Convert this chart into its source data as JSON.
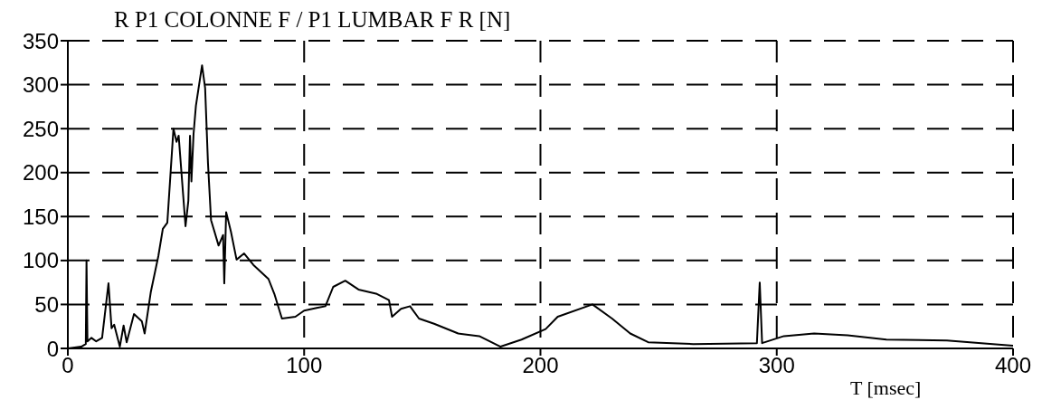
{
  "chart_data": {
    "type": "line",
    "title": "R P1 COLONNE F / P1 LUMBAR F R [N]",
    "xlabel": "T [msec]",
    "xlim": [
      0,
      400
    ],
    "xticks": [
      0,
      100,
      200,
      300,
      400
    ],
    "ylim": [
      0,
      350
    ],
    "yticks": [
      0,
      50,
      100,
      150,
      200,
      250,
      300,
      350
    ],
    "grid": true,
    "marker": "none",
    "line_style": "solid",
    "series": [
      {
        "color": "#000000",
        "x": [
          0,
          5.7,
          7.6,
          7.9,
          8.3,
          10,
          12,
          14.5,
          17.2,
          18.5,
          19.6,
          22,
          23.6,
          24.9,
          28,
          31.3,
          32.5,
          35.1,
          38.3,
          40.2,
          42.1,
          44.7,
          46,
          46.9,
          49.8,
          51,
          51.7,
          52.3,
          53.2,
          54.2,
          56.8,
          58.1,
          59.3,
          60.6,
          63.8,
          65.7,
          66.2,
          67,
          69,
          71.4,
          74.6,
          78.5,
          84.9,
          87.4,
          90.6,
          96.3,
          100,
          105.3,
          109,
          112.3,
          117.4,
          123,
          130.8,
          135.9,
          137.2,
          141,
          144.8,
          148.6,
          155,
          165.2,
          174.1,
          183.1,
          192,
          202.2,
          207.3,
          222,
          230.3,
          238,
          245.6,
          264.7,
          291.6,
          292.8,
          293.8,
          303,
          315.8,
          330,
          346.4,
          372,
          400
        ],
        "values": [
          0,
          2,
          5,
          100,
          8,
          12,
          8,
          12,
          74,
          23,
          27,
          2,
          26,
          7,
          39,
          31,
          17,
          64,
          105,
          136,
          143,
          250,
          235,
          242,
          139,
          168,
          242,
          190,
          244,
          276,
          322,
          296,
          211,
          146,
          117,
          129,
          74,
          155,
          133,
          101,
          108,
          95,
          79,
          62,
          34,
          36,
          43,
          46,
          48,
          70,
          77,
          67,
          62,
          55,
          36,
          45,
          48,
          34,
          28,
          17,
          14,
          2,
          10,
          22,
          36,
          50,
          34,
          17,
          7,
          5,
          6,
          75,
          6,
          14,
          17,
          15,
          10,
          9,
          3
        ]
      }
    ]
  }
}
